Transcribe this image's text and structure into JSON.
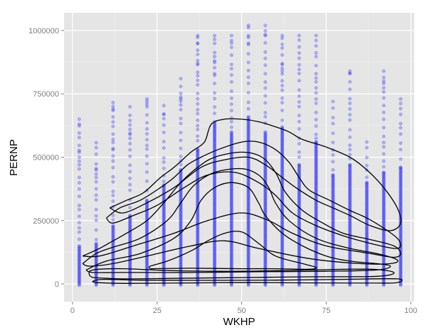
{
  "chart_data": {
    "type": "scatter",
    "title": "",
    "xlabel": "WKHP",
    "ylabel": "PERNP",
    "xlim": [
      -2.5,
      101
    ],
    "ylim": [
      -70000,
      1070000
    ],
    "x_ticks": [
      0,
      25,
      50,
      75,
      100
    ],
    "y_ticks": [
      0,
      250000,
      500000,
      750000,
      1000000
    ],
    "x_tick_labels": [
      "0",
      "25",
      "50",
      "75",
      "100"
    ],
    "y_tick_labels": [
      "0",
      "250000",
      "500000",
      "750000",
      "1000000"
    ],
    "grid": true,
    "legend": "none",
    "colors": {
      "panel": "#e5e5e5",
      "grid": "#ffffff",
      "points": "#1f1fff",
      "contour": "#000000"
    },
    "point_columns": [
      {
        "x": 2,
        "top": 660000,
        "dense_top": 150000,
        "outliers": [
          630000,
          520000,
          470000
        ]
      },
      {
        "x": 7,
        "top": 560000,
        "dense_top": 160000,
        "outliers": [
          450000,
          420000
        ]
      },
      {
        "x": 12,
        "top": 720000,
        "dense_top": 230000,
        "outliers": [
          690000,
          570000,
          530000
        ]
      },
      {
        "x": 17,
        "top": 730000,
        "dense_top": 270000,
        "outliers": [
          610000,
          590000
        ]
      },
      {
        "x": 22,
        "top": 730000,
        "dense_top": 330000,
        "outliers": [
          730000,
          710000
        ]
      },
      {
        "x": 27,
        "top": 730000,
        "dense_top": 390000,
        "outliers": [
          670000
        ]
      },
      {
        "x": 32,
        "top": 810000,
        "dense_top": 450000,
        "outliers": [
          810000,
          730000
        ]
      },
      {
        "x": 37,
        "top": 980000,
        "dense_top": 530000,
        "outliers": [
          980000,
          950000,
          870000
        ]
      },
      {
        "x": 42,
        "top": 980000,
        "dense_top": 640000,
        "outliers": [
          980000,
          880000,
          830000
        ]
      },
      {
        "x": 47,
        "top": 980000,
        "dense_top": 600000,
        "outliers": [
          980000,
          950000
        ]
      },
      {
        "x": 52,
        "top": 1020000,
        "dense_top": 660000,
        "outliers": [
          1020000,
          980000,
          950000
        ]
      },
      {
        "x": 57,
        "top": 1020000,
        "dense_top": 600000,
        "outliers": [
          1020000,
          980000
        ]
      },
      {
        "x": 62,
        "top": 980000,
        "dense_top": 620000,
        "outliers": [
          980000,
          870000,
          840000
        ]
      },
      {
        "x": 67,
        "top": 980000,
        "dense_top": 470000,
        "outliers": [
          980000
        ]
      },
      {
        "x": 72,
        "top": 980000,
        "dense_top": 560000,
        "outliers": [
          980000
        ]
      },
      {
        "x": 77,
        "top": 720000,
        "dense_top": 430000,
        "outliers": [
          720000
        ]
      },
      {
        "x": 82,
        "top": 840000,
        "dense_top": 470000,
        "outliers": [
          840000,
          830000
        ]
      },
      {
        "x": 87,
        "top": 560000,
        "dense_top": 400000,
        "outliers": [
          560000
        ]
      },
      {
        "x": 92,
        "top": 840000,
        "dense_top": 440000,
        "outliers": [
          840000,
          800000
        ]
      },
      {
        "x": 97,
        "top": 730000,
        "dense_top": 460000,
        "outliers": [
          730000
        ]
      }
    ],
    "contours": [
      {
        "level": 1,
        "points": [
          [
            7,
            5000
          ],
          [
            15,
            2000
          ],
          [
            30,
            3000
          ],
          [
            50,
            5000
          ],
          [
            70,
            4000
          ],
          [
            90,
            3000
          ],
          [
            96,
            5000
          ],
          [
            96,
            20000
          ],
          [
            80,
            18000
          ],
          [
            60,
            15000
          ],
          [
            40,
            14000
          ],
          [
            20,
            15000
          ],
          [
            9,
            18000
          ],
          [
            6,
            10000
          ],
          [
            7,
            5000
          ]
        ]
      },
      {
        "level": 2,
        "points": [
          [
            6,
            25000
          ],
          [
            15,
            20000
          ],
          [
            30,
            22000
          ],
          [
            50,
            25000
          ],
          [
            70,
            28000
          ],
          [
            90,
            30000
          ],
          [
            95,
            45000
          ],
          [
            88,
            58000
          ],
          [
            70,
            55000
          ],
          [
            50,
            50000
          ],
          [
            30,
            52000
          ],
          [
            15,
            60000
          ],
          [
            6,
            55000
          ],
          [
            5,
            35000
          ],
          [
            6,
            25000
          ]
        ]
      },
      {
        "level": 3,
        "points": [
          [
            23,
            60000
          ],
          [
            35,
            62000
          ],
          [
            50,
            60000
          ],
          [
            60,
            60000
          ],
          [
            70,
            58000
          ],
          [
            72,
            65000
          ],
          [
            68,
            80000
          ],
          [
            60,
            110000
          ],
          [
            55,
            160000
          ],
          [
            50,
            205000
          ],
          [
            45,
            200000
          ],
          [
            40,
            170000
          ],
          [
            35,
            130000
          ],
          [
            28,
            90000
          ],
          [
            23,
            70000
          ],
          [
            23,
            60000
          ]
        ]
      },
      {
        "level": 4,
        "points": [
          [
            4,
            55000
          ],
          [
            10,
            90000
          ],
          [
            20,
            120000
          ],
          [
            30,
            180000
          ],
          [
            35,
            250000
          ],
          [
            38,
            330000
          ],
          [
            42,
            380000
          ],
          [
            47,
            400000
          ],
          [
            52,
            380000
          ],
          [
            55,
            320000
          ],
          [
            57,
            270000
          ],
          [
            62,
            200000
          ],
          [
            68,
            150000
          ],
          [
            75,
            110000
          ],
          [
            82,
            90000
          ],
          [
            90,
            80000
          ],
          [
            94,
            70000
          ],
          [
            90,
            55000
          ],
          [
            75,
            50000
          ],
          [
            55,
            48000
          ],
          [
            35,
            45000
          ],
          [
            15,
            45000
          ],
          [
            6,
            45000
          ],
          [
            4,
            55000
          ]
        ]
      },
      {
        "level": 5,
        "points": [
          [
            3,
            80000
          ],
          [
            7,
            120000
          ],
          [
            12,
            145000
          ],
          [
            20,
            180000
          ],
          [
            28,
            250000
          ],
          [
            32,
            320000
          ],
          [
            36,
            390000
          ],
          [
            42,
            440000
          ],
          [
            50,
            455000
          ],
          [
            55,
            430000
          ],
          [
            58,
            380000
          ],
          [
            60,
            320000
          ],
          [
            64,
            250000
          ],
          [
            72,
            180000
          ],
          [
            82,
            140000
          ],
          [
            90,
            120000
          ],
          [
            96,
            95000
          ],
          [
            94,
            80000
          ],
          [
            85,
            80000
          ],
          [
            70,
            100000
          ],
          [
            55,
            140000
          ],
          [
            45,
            170000
          ],
          [
            35,
            150000
          ],
          [
            22,
            110000
          ],
          [
            12,
            80000
          ],
          [
            5,
            70000
          ],
          [
            3,
            80000
          ]
        ]
      },
      {
        "level": 6,
        "points": [
          [
            3,
            110000
          ],
          [
            8,
            140000
          ],
          [
            12,
            170000
          ],
          [
            16,
            200000
          ],
          [
            22,
            250000
          ],
          [
            27,
            320000
          ],
          [
            32,
            400000
          ],
          [
            37,
            460000
          ],
          [
            42,
            500000
          ],
          [
            50,
            520000
          ],
          [
            56,
            500000
          ],
          [
            60,
            440000
          ],
          [
            63,
            360000
          ],
          [
            68,
            290000
          ],
          [
            74,
            240000
          ],
          [
            80,
            200000
          ],
          [
            88,
            175000
          ],
          [
            95,
            150000
          ],
          [
            97,
            120000
          ],
          [
            95,
            105000
          ],
          [
            88,
            120000
          ],
          [
            75,
            150000
          ],
          [
            65,
            200000
          ],
          [
            58,
            250000
          ],
          [
            50,
            280000
          ],
          [
            40,
            250000
          ],
          [
            30,
            200000
          ],
          [
            18,
            150000
          ],
          [
            8,
            110000
          ],
          [
            3,
            110000
          ]
        ]
      },
      {
        "level": 7,
        "points": [
          [
            10,
            260000
          ],
          [
            14,
            300000
          ],
          [
            20,
            330000
          ],
          [
            26,
            380000
          ],
          [
            30,
            420000
          ],
          [
            34,
            470000
          ],
          [
            38,
            500000
          ],
          [
            43,
            530000
          ],
          [
            50,
            560000
          ],
          [
            55,
            560000
          ],
          [
            60,
            530000
          ],
          [
            64,
            480000
          ],
          [
            67,
            420000
          ],
          [
            70,
            370000
          ],
          [
            76,
            330000
          ],
          [
            82,
            290000
          ],
          [
            87,
            260000
          ],
          [
            92,
            220000
          ],
          [
            96,
            180000
          ],
          [
            97,
            150000
          ],
          [
            95,
            140000
          ],
          [
            88,
            160000
          ],
          [
            80,
            190000
          ],
          [
            72,
            230000
          ],
          [
            65,
            280000
          ],
          [
            60,
            350000
          ],
          [
            55,
            400000
          ],
          [
            48,
            440000
          ],
          [
            40,
            430000
          ],
          [
            33,
            380000
          ],
          [
            25,
            310000
          ],
          [
            18,
            270000
          ],
          [
            12,
            240000
          ],
          [
            10,
            260000
          ]
        ]
      },
      {
        "level": 8,
        "points": [
          [
            11,
            300000
          ],
          [
            16,
            330000
          ],
          [
            21,
            360000
          ],
          [
            26,
            420000
          ],
          [
            30,
            460000
          ],
          [
            35,
            520000
          ],
          [
            39,
            560000
          ],
          [
            41,
            630000
          ],
          [
            45,
            650000
          ],
          [
            50,
            650000
          ],
          [
            55,
            640000
          ],
          [
            60,
            620000
          ],
          [
            64,
            600000
          ],
          [
            68,
            570000
          ],
          [
            75,
            540000
          ],
          [
            82,
            500000
          ],
          [
            87,
            450000
          ],
          [
            92,
            380000
          ],
          [
            96,
            300000
          ],
          [
            97,
            240000
          ],
          [
            94,
            210000
          ],
          [
            88,
            230000
          ],
          [
            82,
            270000
          ],
          [
            77,
            300000
          ],
          [
            72,
            330000
          ],
          [
            66,
            380000
          ],
          [
            62,
            420000
          ],
          [
            57,
            470000
          ],
          [
            52,
            500000
          ],
          [
            45,
            490000
          ],
          [
            38,
            460000
          ],
          [
            30,
            380000
          ],
          [
            22,
            320000
          ],
          [
            15,
            280000
          ],
          [
            11,
            300000
          ]
        ]
      }
    ]
  }
}
